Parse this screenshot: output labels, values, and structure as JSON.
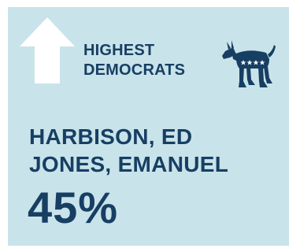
{
  "card": {
    "heading_line1": "HIGHEST",
    "heading_line2": "DEMOCRATS",
    "names": [
      "HARBISON, ED",
      "JONES, EMANUEL"
    ],
    "percent": "45%"
  },
  "icons": {
    "arrow": "up-arrow-icon",
    "party": "democrat-donkey-icon"
  },
  "colors": {
    "background": "#c9e3ea",
    "text": "#173f63",
    "arrow": "#ffffff"
  }
}
